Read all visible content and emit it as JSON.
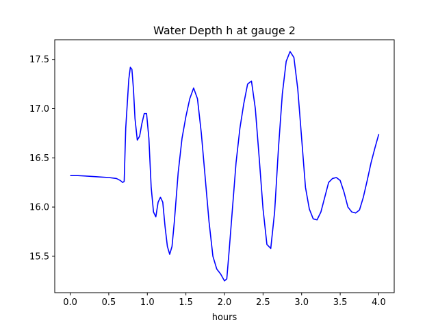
{
  "chart_data": {
    "type": "line",
    "title": "Water Depth h at gauge 2",
    "xlabel": "hours",
    "ylabel": "",
    "xlim": [
      -0.2,
      4.2
    ],
    "ylim": [
      15.13,
      17.7
    ],
    "xticks": [
      0.0,
      0.5,
      1.0,
      1.5,
      2.0,
      2.5,
      3.0,
      3.5,
      4.0
    ],
    "xtick_labels": [
      "0.0",
      "0.5",
      "1.0",
      "1.5",
      "2.0",
      "2.5",
      "3.0",
      "3.5",
      "4.0"
    ],
    "yticks": [
      15.5,
      16.0,
      16.5,
      17.0,
      17.5
    ],
    "ytick_labels": [
      "15.5",
      "16.0",
      "16.5",
      "17.0",
      "17.5"
    ],
    "grid": false,
    "series": [
      {
        "color": "#0000ff",
        "x": [
          0.0,
          0.1,
          0.2,
          0.3,
          0.4,
          0.5,
          0.6,
          0.65,
          0.68,
          0.7,
          0.72,
          0.74,
          0.76,
          0.78,
          0.8,
          0.82,
          0.84,
          0.87,
          0.9,
          0.93,
          0.96,
          0.99,
          1.02,
          1.05,
          1.08,
          1.11,
          1.14,
          1.17,
          1.2,
          1.23,
          1.26,
          1.29,
          1.32,
          1.35,
          1.4,
          1.45,
          1.5,
          1.55,
          1.6,
          1.65,
          1.7,
          1.75,
          1.8,
          1.85,
          1.9,
          1.95,
          2.0,
          2.03,
          2.06,
          2.1,
          2.15,
          2.2,
          2.25,
          2.3,
          2.35,
          2.4,
          2.45,
          2.5,
          2.55,
          2.6,
          2.65,
          2.7,
          2.75,
          2.8,
          2.85,
          2.9,
          2.95,
          3.0,
          3.05,
          3.1,
          3.15,
          3.2,
          3.25,
          3.3,
          3.35,
          3.4,
          3.45,
          3.5,
          3.55,
          3.6,
          3.65,
          3.7,
          3.75,
          3.8,
          3.85,
          3.9,
          3.95,
          4.0
        ],
        "y": [
          16.32,
          16.32,
          16.315,
          16.31,
          16.305,
          16.3,
          16.29,
          16.27,
          16.25,
          16.26,
          16.8,
          17.05,
          17.3,
          17.42,
          17.4,
          17.2,
          16.9,
          16.68,
          16.72,
          16.85,
          16.95,
          16.95,
          16.7,
          16.2,
          15.95,
          15.9,
          16.05,
          16.1,
          16.05,
          15.8,
          15.6,
          15.52,
          15.6,
          15.85,
          16.35,
          16.7,
          16.92,
          17.1,
          17.21,
          17.1,
          16.75,
          16.3,
          15.85,
          15.5,
          15.37,
          15.32,
          15.25,
          15.27,
          15.55,
          15.95,
          16.45,
          16.8,
          17.05,
          17.25,
          17.28,
          17.0,
          16.5,
          15.98,
          15.62,
          15.58,
          15.95,
          16.6,
          17.15,
          17.48,
          17.58,
          17.52,
          17.2,
          16.7,
          16.2,
          15.98,
          15.88,
          15.87,
          15.95,
          16.1,
          16.25,
          16.29,
          16.3,
          16.27,
          16.15,
          16.0,
          15.95,
          15.94,
          15.97,
          16.1,
          16.27,
          16.45,
          16.6,
          16.74
        ]
      }
    ]
  }
}
